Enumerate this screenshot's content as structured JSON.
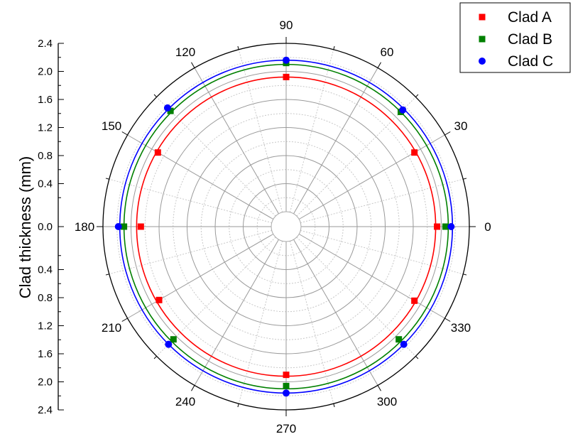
{
  "chart_data": {
    "type": "polar-scatter",
    "title": "",
    "ylabel": "Clad thickness (mm)",
    "radial_range": [
      0,
      2.4
    ],
    "radial_ticks": [
      "2.4",
      "2.0",
      "1.6",
      "1.2",
      "0.8",
      "0.4",
      "0.0",
      "0.4",
      "0.8",
      "1.2",
      "1.6",
      "2.0",
      "2.4"
    ],
    "angular_ticks": [
      0,
      30,
      60,
      90,
      120,
      150,
      180,
      210,
      240,
      270,
      300,
      330
    ],
    "grid": true,
    "legend_position": "top-right",
    "series": [
      {
        "name": "Clad A",
        "color": "#ff0000",
        "marker": "square",
        "circle_radius": 1.92,
        "points": [
          {
            "angle": 0,
            "r": 1.94
          },
          {
            "angle": 30,
            "r": 1.9
          },
          {
            "angle": 90,
            "r": 1.92
          },
          {
            "angle": 150,
            "r": 1.9
          },
          {
            "angle": 180,
            "r": 1.86
          },
          {
            "angle": 210,
            "r": 1.88
          },
          {
            "angle": 270,
            "r": 1.9
          },
          {
            "angle": 330,
            "r": 1.9
          }
        ]
      },
      {
        "name": "Clad B",
        "color": "#008000",
        "marker": "square",
        "circle_radius": 2.1,
        "points": [
          {
            "angle": 0,
            "r": 2.06
          },
          {
            "angle": 45,
            "r": 2.1
          },
          {
            "angle": 90,
            "r": 2.12
          },
          {
            "angle": 135,
            "r": 2.12
          },
          {
            "angle": 180,
            "r": 2.1
          },
          {
            "angle": 225,
            "r": 2.06
          },
          {
            "angle": 270,
            "r": 2.06
          },
          {
            "angle": 315,
            "r": 2.06
          }
        ]
      },
      {
        "name": "Clad C",
        "color": "#0000ff",
        "marker": "circle",
        "circle_radius": 2.16,
        "points": [
          {
            "angle": 0,
            "r": 2.14
          },
          {
            "angle": 45,
            "r": 2.14
          },
          {
            "angle": 90,
            "r": 2.16
          },
          {
            "angle": 135,
            "r": 2.18
          },
          {
            "angle": 180,
            "r": 2.18
          },
          {
            "angle": 225,
            "r": 2.16
          },
          {
            "angle": 270,
            "r": 2.16
          },
          {
            "angle": 315,
            "r": 2.16
          }
        ]
      }
    ]
  }
}
